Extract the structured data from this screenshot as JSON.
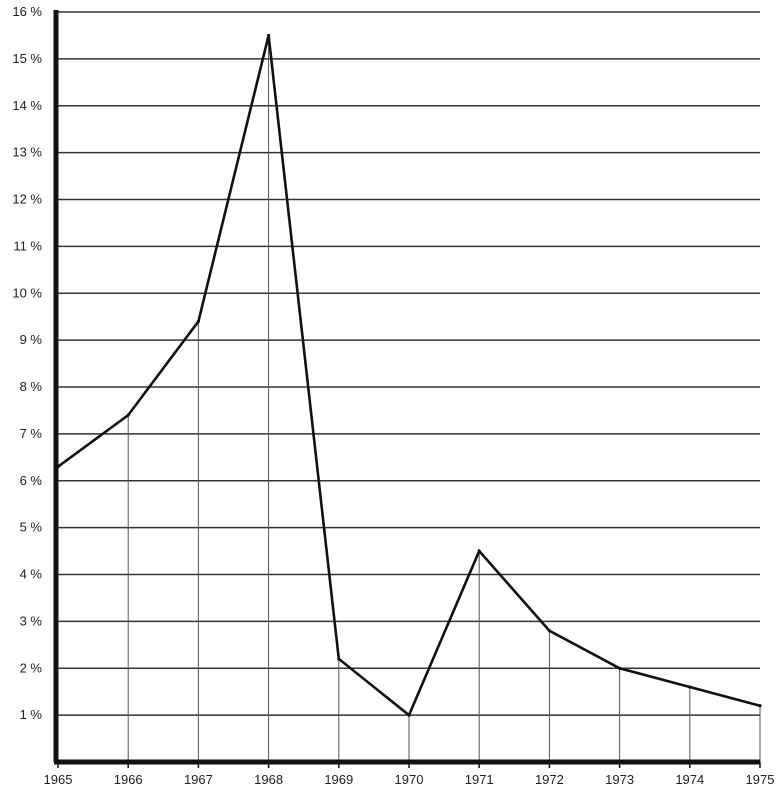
{
  "chart_data": {
    "type": "line",
    "title": "",
    "xlabel": "",
    "ylabel": "",
    "x": [
      "1965",
      "1966",
      "1967",
      "1968",
      "1969",
      "1970",
      "1971",
      "1972",
      "1973",
      "1974",
      "1975"
    ],
    "y_ticks": [
      "1 %",
      "2 %",
      "3 %",
      "4 %",
      "5 %",
      "6 %",
      "7 %",
      "8 %",
      "9 %",
      "10 %",
      "11 %",
      "12 %",
      "13 %",
      "14 %",
      "15 %",
      "16 %"
    ],
    "series": [
      {
        "values": [
          6.3,
          7.4,
          9.4,
          15.5,
          2.2,
          1.0,
          4.5,
          2.8,
          2.0,
          1.6,
          1.2
        ]
      }
    ],
    "ylim": [
      0,
      16
    ],
    "grid": true,
    "legend": "none",
    "colors": {
      "line": "#111111",
      "grid": "#333333",
      "axis": "#111111"
    }
  }
}
